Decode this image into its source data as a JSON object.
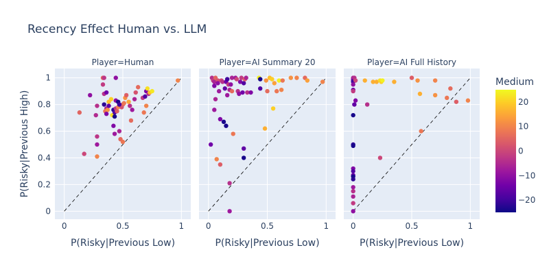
{
  "chart_title": "Recency Effect Human vs. LLM",
  "chart_data": {
    "type": "scatter",
    "title": "Recency Effect Human vs. LLM",
    "xlabel": "P(Risky|Previous Low)",
    "ylabel": "P(Risky|Previous High)",
    "xlim": [
      -0.08,
      1.08
    ],
    "ylim": [
      -0.06,
      1.07
    ],
    "x_ticks": [
      0,
      0.5,
      1
    ],
    "x_tick_labels": [
      "0",
      "0.5",
      "1"
    ],
    "y_ticks": [
      0,
      0.2,
      0.4,
      0.6,
      0.8,
      1
    ],
    "y_tick_labels": [
      "0",
      "0.2",
      "0.4",
      "0.6",
      "0.8",
      "1"
    ],
    "grid": true,
    "reference_line": "y = x",
    "color_scale": {
      "title": "Medium",
      "range": [
        -25,
        25
      ],
      "ticks": [
        20,
        10,
        0,
        -10,
        -20
      ],
      "tick_labels": [
        "20",
        "10",
        "0",
        "−10",
        "−20"
      ],
      "colors": [
        "#0d0887",
        "#46039f",
        "#7201a8",
        "#9c179e",
        "#bd3786",
        "#d8576b",
        "#ed7953",
        "#fb9f3a",
        "#fdca26",
        "#f0f921"
      ]
    },
    "facets": [
      {
        "label": "Player=Human",
        "points": [
          [
            0.13,
            0.74,
            5
          ],
          [
            0.17,
            0.43,
            0
          ],
          [
            0.22,
            0.87,
            -10
          ],
          [
            0.27,
            0.72,
            -5
          ],
          [
            0.28,
            0.79,
            -4
          ],
          [
            0.28,
            0.56,
            -3
          ],
          [
            0.28,
            0.5,
            -8
          ],
          [
            0.28,
            0.41,
            10
          ],
          [
            0.33,
            1.0,
            5
          ],
          [
            0.34,
            1.0,
            -3
          ],
          [
            0.33,
            0.95,
            -2
          ],
          [
            0.34,
            0.88,
            -4
          ],
          [
            0.34,
            0.8,
            -22
          ],
          [
            0.36,
            0.77,
            -6
          ],
          [
            0.35,
            0.75,
            8
          ],
          [
            0.37,
            0.76,
            12
          ],
          [
            0.36,
            0.73,
            -12
          ],
          [
            0.38,
            0.82,
            18
          ],
          [
            0.38,
            0.79,
            -16
          ],
          [
            0.4,
            0.84,
            20
          ],
          [
            0.41,
            0.72,
            22
          ],
          [
            0.42,
            0.76,
            -22
          ],
          [
            0.42,
            0.64,
            -12
          ],
          [
            0.43,
            0.58,
            -8
          ],
          [
            0.43,
            0.74,
            -18
          ],
          [
            0.43,
            0.71,
            -24
          ],
          [
            0.44,
            0.83,
            -10
          ],
          [
            0.44,
            0.77,
            -3
          ],
          [
            0.44,
            1.0,
            -10
          ],
          [
            0.45,
            0.75,
            4
          ],
          [
            0.46,
            0.82,
            -24
          ],
          [
            0.46,
            0.78,
            10
          ],
          [
            0.47,
            0.6,
            -6
          ],
          [
            0.48,
            0.54,
            6
          ],
          [
            0.49,
            0.78,
            2
          ],
          [
            0.5,
            0.8,
            4
          ],
          [
            0.5,
            0.52,
            8
          ],
          [
            0.51,
            0.81,
            8
          ],
          [
            0.52,
            0.85,
            12
          ],
          [
            0.53,
            0.87,
            4
          ],
          [
            0.55,
            0.82,
            15
          ],
          [
            0.56,
            0.79,
            -4
          ],
          [
            0.57,
            0.68,
            6
          ],
          [
            0.58,
            0.76,
            -8
          ],
          [
            0.6,
            0.84,
            -6
          ],
          [
            0.61,
            0.89,
            2
          ],
          [
            0.63,
            0.93,
            6
          ],
          [
            0.67,
            0.85,
            -2
          ],
          [
            0.68,
            0.74,
            8
          ],
          [
            0.69,
            0.86,
            -18
          ],
          [
            0.7,
            0.9,
            -12
          ],
          [
            0.7,
            0.79,
            10
          ],
          [
            0.71,
            0.92,
            22
          ],
          [
            0.72,
            0.88,
            -4
          ],
          [
            0.73,
            0.89,
            18
          ],
          [
            0.75,
            0.9,
            23
          ],
          [
            0.97,
            0.98,
            10
          ],
          [
            0.36,
            0.89,
            -14
          ],
          [
            0.47,
            0.8,
            -20
          ]
        ]
      },
      {
        "label": "Player=AI Summary 20",
        "points": [
          [
            0.02,
            0.5,
            -14
          ],
          [
            0.03,
            1.0,
            -4
          ],
          [
            0.04,
            0.98,
            -2
          ],
          [
            0.05,
            0.97,
            -6
          ],
          [
            0.05,
            0.94,
            -12
          ],
          [
            0.05,
            0.76,
            -8
          ],
          [
            0.06,
            0.84,
            -6
          ],
          [
            0.06,
            1.0,
            5
          ],
          [
            0.07,
            0.39,
            10
          ],
          [
            0.08,
            0.98,
            2
          ],
          [
            0.08,
            0.96,
            -10
          ],
          [
            0.09,
            0.9,
            -8
          ],
          [
            0.1,
            0.35,
            4
          ],
          [
            0.1,
            0.69,
            -12
          ],
          [
            0.11,
            0.98,
            0
          ],
          [
            0.12,
            0.97,
            -4
          ],
          [
            0.13,
            0.67,
            -24
          ],
          [
            0.14,
            0.92,
            -16
          ],
          [
            0.15,
            0.64,
            -24
          ],
          [
            0.15,
            0.97,
            -14
          ],
          [
            0.16,
            0.99,
            -20
          ],
          [
            0.16,
            0.87,
            -8
          ],
          [
            0.17,
            0.95,
            -2
          ],
          [
            0.18,
            0.91,
            -6
          ],
          [
            0.18,
            0.21,
            -4
          ],
          [
            0.18,
            0.0,
            -8
          ],
          [
            0.19,
            0.95,
            -10
          ],
          [
            0.2,
            1.0,
            -6
          ],
          [
            0.2,
            0.9,
            6
          ],
          [
            0.21,
            0.58,
            8
          ],
          [
            0.23,
            1.0,
            -8
          ],
          [
            0.24,
            0.99,
            0
          ],
          [
            0.25,
            0.9,
            -4
          ],
          [
            0.26,
            0.88,
            -10
          ],
          [
            0.27,
            0.97,
            -12
          ],
          [
            0.28,
            1.0,
            -2
          ],
          [
            0.29,
            0.89,
            -14
          ],
          [
            0.3,
            0.96,
            -18
          ],
          [
            0.3,
            0.47,
            -16
          ],
          [
            0.3,
            0.4,
            -24
          ],
          [
            0.31,
            0.99,
            4
          ],
          [
            0.32,
            1.0,
            -6
          ],
          [
            0.33,
            0.89,
            -4
          ],
          [
            0.36,
            0.89,
            -12
          ],
          [
            0.43,
            1.0,
            24
          ],
          [
            0.44,
            0.92,
            -18
          ],
          [
            0.44,
            0.99,
            -24
          ],
          [
            0.48,
            0.62,
            16
          ],
          [
            0.49,
            0.98,
            12
          ],
          [
            0.5,
            0.9,
            6
          ],
          [
            0.52,
            1.0,
            18
          ],
          [
            0.54,
            0.99,
            20
          ],
          [
            0.55,
            0.77,
            20
          ],
          [
            0.56,
            0.96,
            14
          ],
          [
            0.58,
            0.9,
            8
          ],
          [
            0.6,
            0.98,
            24
          ],
          [
            0.62,
            0.91,
            10
          ],
          [
            0.63,
            0.98,
            8
          ],
          [
            0.7,
            1.0,
            12
          ],
          [
            0.75,
            1.0,
            10
          ],
          [
            0.82,
            1.0,
            6
          ],
          [
            0.84,
            0.98,
            14
          ],
          [
            0.97,
            0.97,
            10
          ]
        ]
      },
      {
        "label": "Player=AI Full History",
        "points": [
          [
            0.0,
            1.0,
            -6
          ],
          [
            0.0,
            0.99,
            -8
          ],
          [
            0.0,
            0.98,
            -16
          ],
          [
            0.0,
            0.97,
            -20
          ],
          [
            0.0,
            0.95,
            -10
          ],
          [
            0.0,
            0.91,
            -14
          ],
          [
            0.0,
            0.9,
            -2
          ],
          [
            0.0,
            0.72,
            -24
          ],
          [
            0.0,
            0.5,
            -22
          ],
          [
            0.0,
            0.49,
            -24
          ],
          [
            0.0,
            0.32,
            -12
          ],
          [
            0.0,
            0.3,
            -18
          ],
          [
            0.0,
            0.27,
            -14
          ],
          [
            0.0,
            0.26,
            -24
          ],
          [
            0.0,
            0.24,
            -22
          ],
          [
            0.0,
            0.18,
            -8
          ],
          [
            0.0,
            0.15,
            -4
          ],
          [
            0.0,
            0.11,
            -6
          ],
          [
            0.0,
            0.06,
            -2
          ],
          [
            0.0,
            0.0,
            -10
          ],
          [
            0.01,
            1.0,
            -4
          ],
          [
            0.02,
            0.98,
            0
          ],
          [
            0.02,
            0.83,
            -12
          ],
          [
            0.01,
            0.8,
            -16
          ],
          [
            0.1,
            0.98,
            16
          ],
          [
            0.12,
            0.8,
            -4
          ],
          [
            0.17,
            0.97,
            16
          ],
          [
            0.2,
            0.97,
            16
          ],
          [
            0.23,
            0.98,
            22
          ],
          [
            0.24,
            0.97,
            20
          ],
          [
            0.25,
            0.98,
            24
          ],
          [
            0.23,
            0.4,
            0
          ],
          [
            0.35,
            0.97,
            16
          ],
          [
            0.5,
            1.0,
            4
          ],
          [
            0.55,
            0.98,
            12
          ],
          [
            0.57,
            0.88,
            16
          ],
          [
            0.58,
            0.6,
            8
          ],
          [
            0.7,
            0.98,
            10
          ],
          [
            0.7,
            0.87,
            12
          ],
          [
            0.8,
            0.85,
            8
          ],
          [
            0.83,
            0.92,
            6
          ],
          [
            0.88,
            0.82,
            4
          ],
          [
            0.98,
            0.83,
            10
          ]
        ]
      }
    ]
  }
}
